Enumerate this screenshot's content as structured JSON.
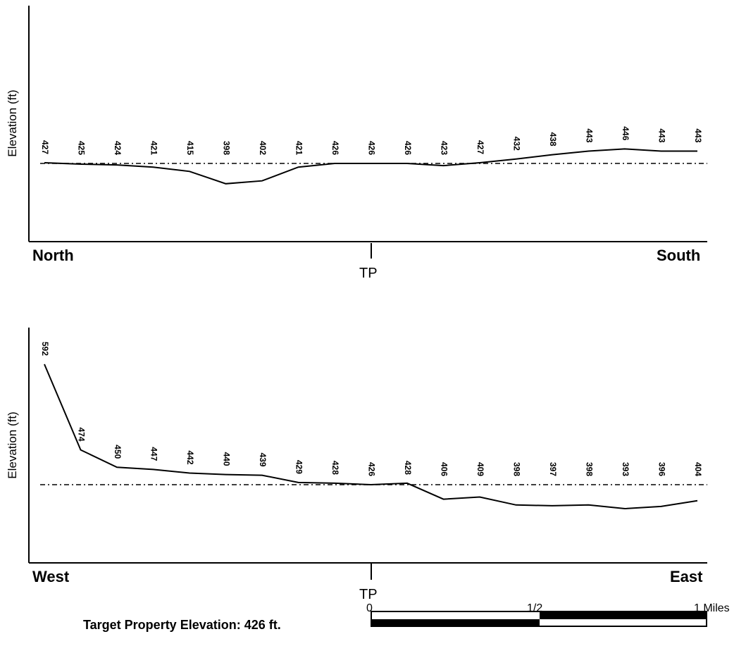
{
  "chart_data": [
    {
      "type": "line",
      "ylabel": "Elevation (ft)",
      "x_start_label": "North",
      "x_end_label": "South",
      "center_label": "TP",
      "reference_elevation": 426,
      "reference_line_style": "dash-dot",
      "values": [
        427,
        425,
        424,
        421,
        415,
        398,
        402,
        421,
        426,
        426,
        426,
        423,
        427,
        432,
        438,
        443,
        446,
        443,
        443
      ]
    },
    {
      "type": "line",
      "ylabel": "Elevation (ft)",
      "x_start_label": "West",
      "x_end_label": "East",
      "center_label": "TP",
      "reference_elevation": 426,
      "reference_line_style": "dash-dot",
      "values": [
        592,
        474,
        450,
        447,
        442,
        440,
        439,
        429,
        428,
        426,
        428,
        406,
        409,
        398,
        397,
        398,
        393,
        396,
        404
      ]
    }
  ],
  "footer": {
    "target_elevation_text": "Target Property Elevation: 426 ft."
  },
  "scale_bar": {
    "label_start": "0",
    "label_mid": "1/2",
    "label_end": "1 Miles"
  }
}
